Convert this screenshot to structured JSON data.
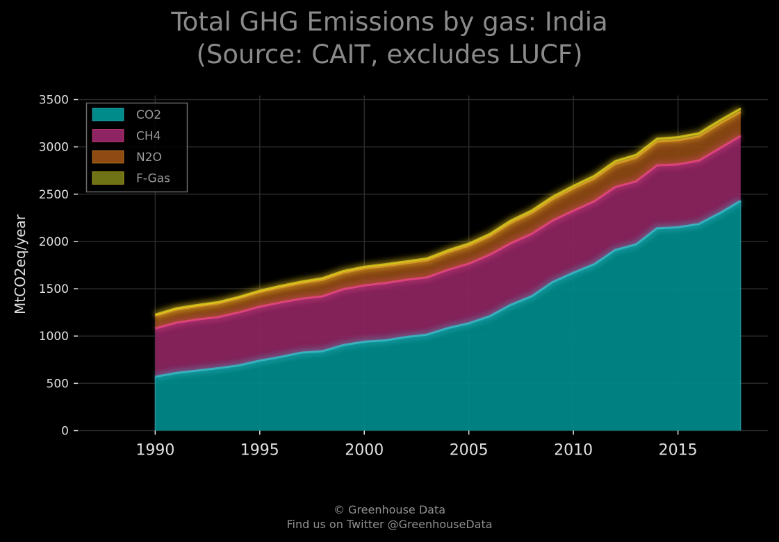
{
  "chart_data": {
    "type": "area",
    "stacked": true,
    "title_lines": [
      "Total GHG Emissions by gas: India",
      "(Source: CAIT, excludes LUCF)"
    ],
    "xlabel": "",
    "ylabel": "MtCO2eq/year",
    "x": [
      1990,
      1991,
      1992,
      1993,
      1994,
      1995,
      1996,
      1997,
      1998,
      1999,
      2000,
      2001,
      2002,
      2003,
      2004,
      2005,
      2006,
      2007,
      2008,
      2009,
      2010,
      2011,
      2012,
      2013,
      2014,
      2015,
      2016,
      2017,
      2018
    ],
    "xlim": [
      1986.3,
      2019.3
    ],
    "ylim": [
      0,
      3500
    ],
    "x_ticks": [
      1990,
      1995,
      2000,
      2005,
      2010,
      2015
    ],
    "y_ticks": [
      0,
      500,
      1000,
      1500,
      2000,
      2500,
      3000,
      3500
    ],
    "grid": true,
    "legend_position": "upper-left",
    "series": [
      {
        "name": "CO2",
        "color": "#008b8b",
        "line_color": "#3ac4d0",
        "values": [
          570,
          610,
          635,
          660,
          690,
          740,
          780,
          825,
          840,
          905,
          940,
          955,
          990,
          1015,
          1085,
          1135,
          1210,
          1330,
          1420,
          1570,
          1670,
          1760,
          1910,
          1970,
          2140,
          2150,
          2185,
          2300,
          2430
        ]
      },
      {
        "name": "CH4",
        "color": "#8e2461",
        "line_color": "#f0488a",
        "values": [
          510,
          530,
          540,
          540,
          560,
          570,
          575,
          570,
          580,
          590,
          595,
          605,
          605,
          605,
          615,
          630,
          650,
          650,
          660,
          650,
          655,
          665,
          665,
          665,
          665,
          665,
          670,
          685,
          685
        ]
      },
      {
        "name": "N2O",
        "color": "#8f4a14",
        "line_color": "#e3962a",
        "values": [
          135,
          140,
          140,
          145,
          150,
          155,
          160,
          165,
          175,
          175,
          180,
          180,
          175,
          180,
          185,
          190,
          195,
          215,
          220,
          225,
          235,
          240,
          245,
          250,
          250,
          255,
          255,
          260,
          255
        ]
      },
      {
        "name": "F-Gas",
        "color": "#6f7316",
        "line_color": "#e6d31c",
        "values": [
          12,
          13,
          13,
          14,
          14,
          15,
          16,
          16,
          17,
          18,
          18,
          19,
          20,
          21,
          22,
          23,
          24,
          25,
          26,
          27,
          28,
          29,
          30,
          31,
          32,
          33,
          34,
          35,
          36
        ]
      }
    ]
  },
  "credit": {
    "line1": "© Greenhouse Data",
    "line2": "Find us on Twitter @GreenhouseData"
  }
}
